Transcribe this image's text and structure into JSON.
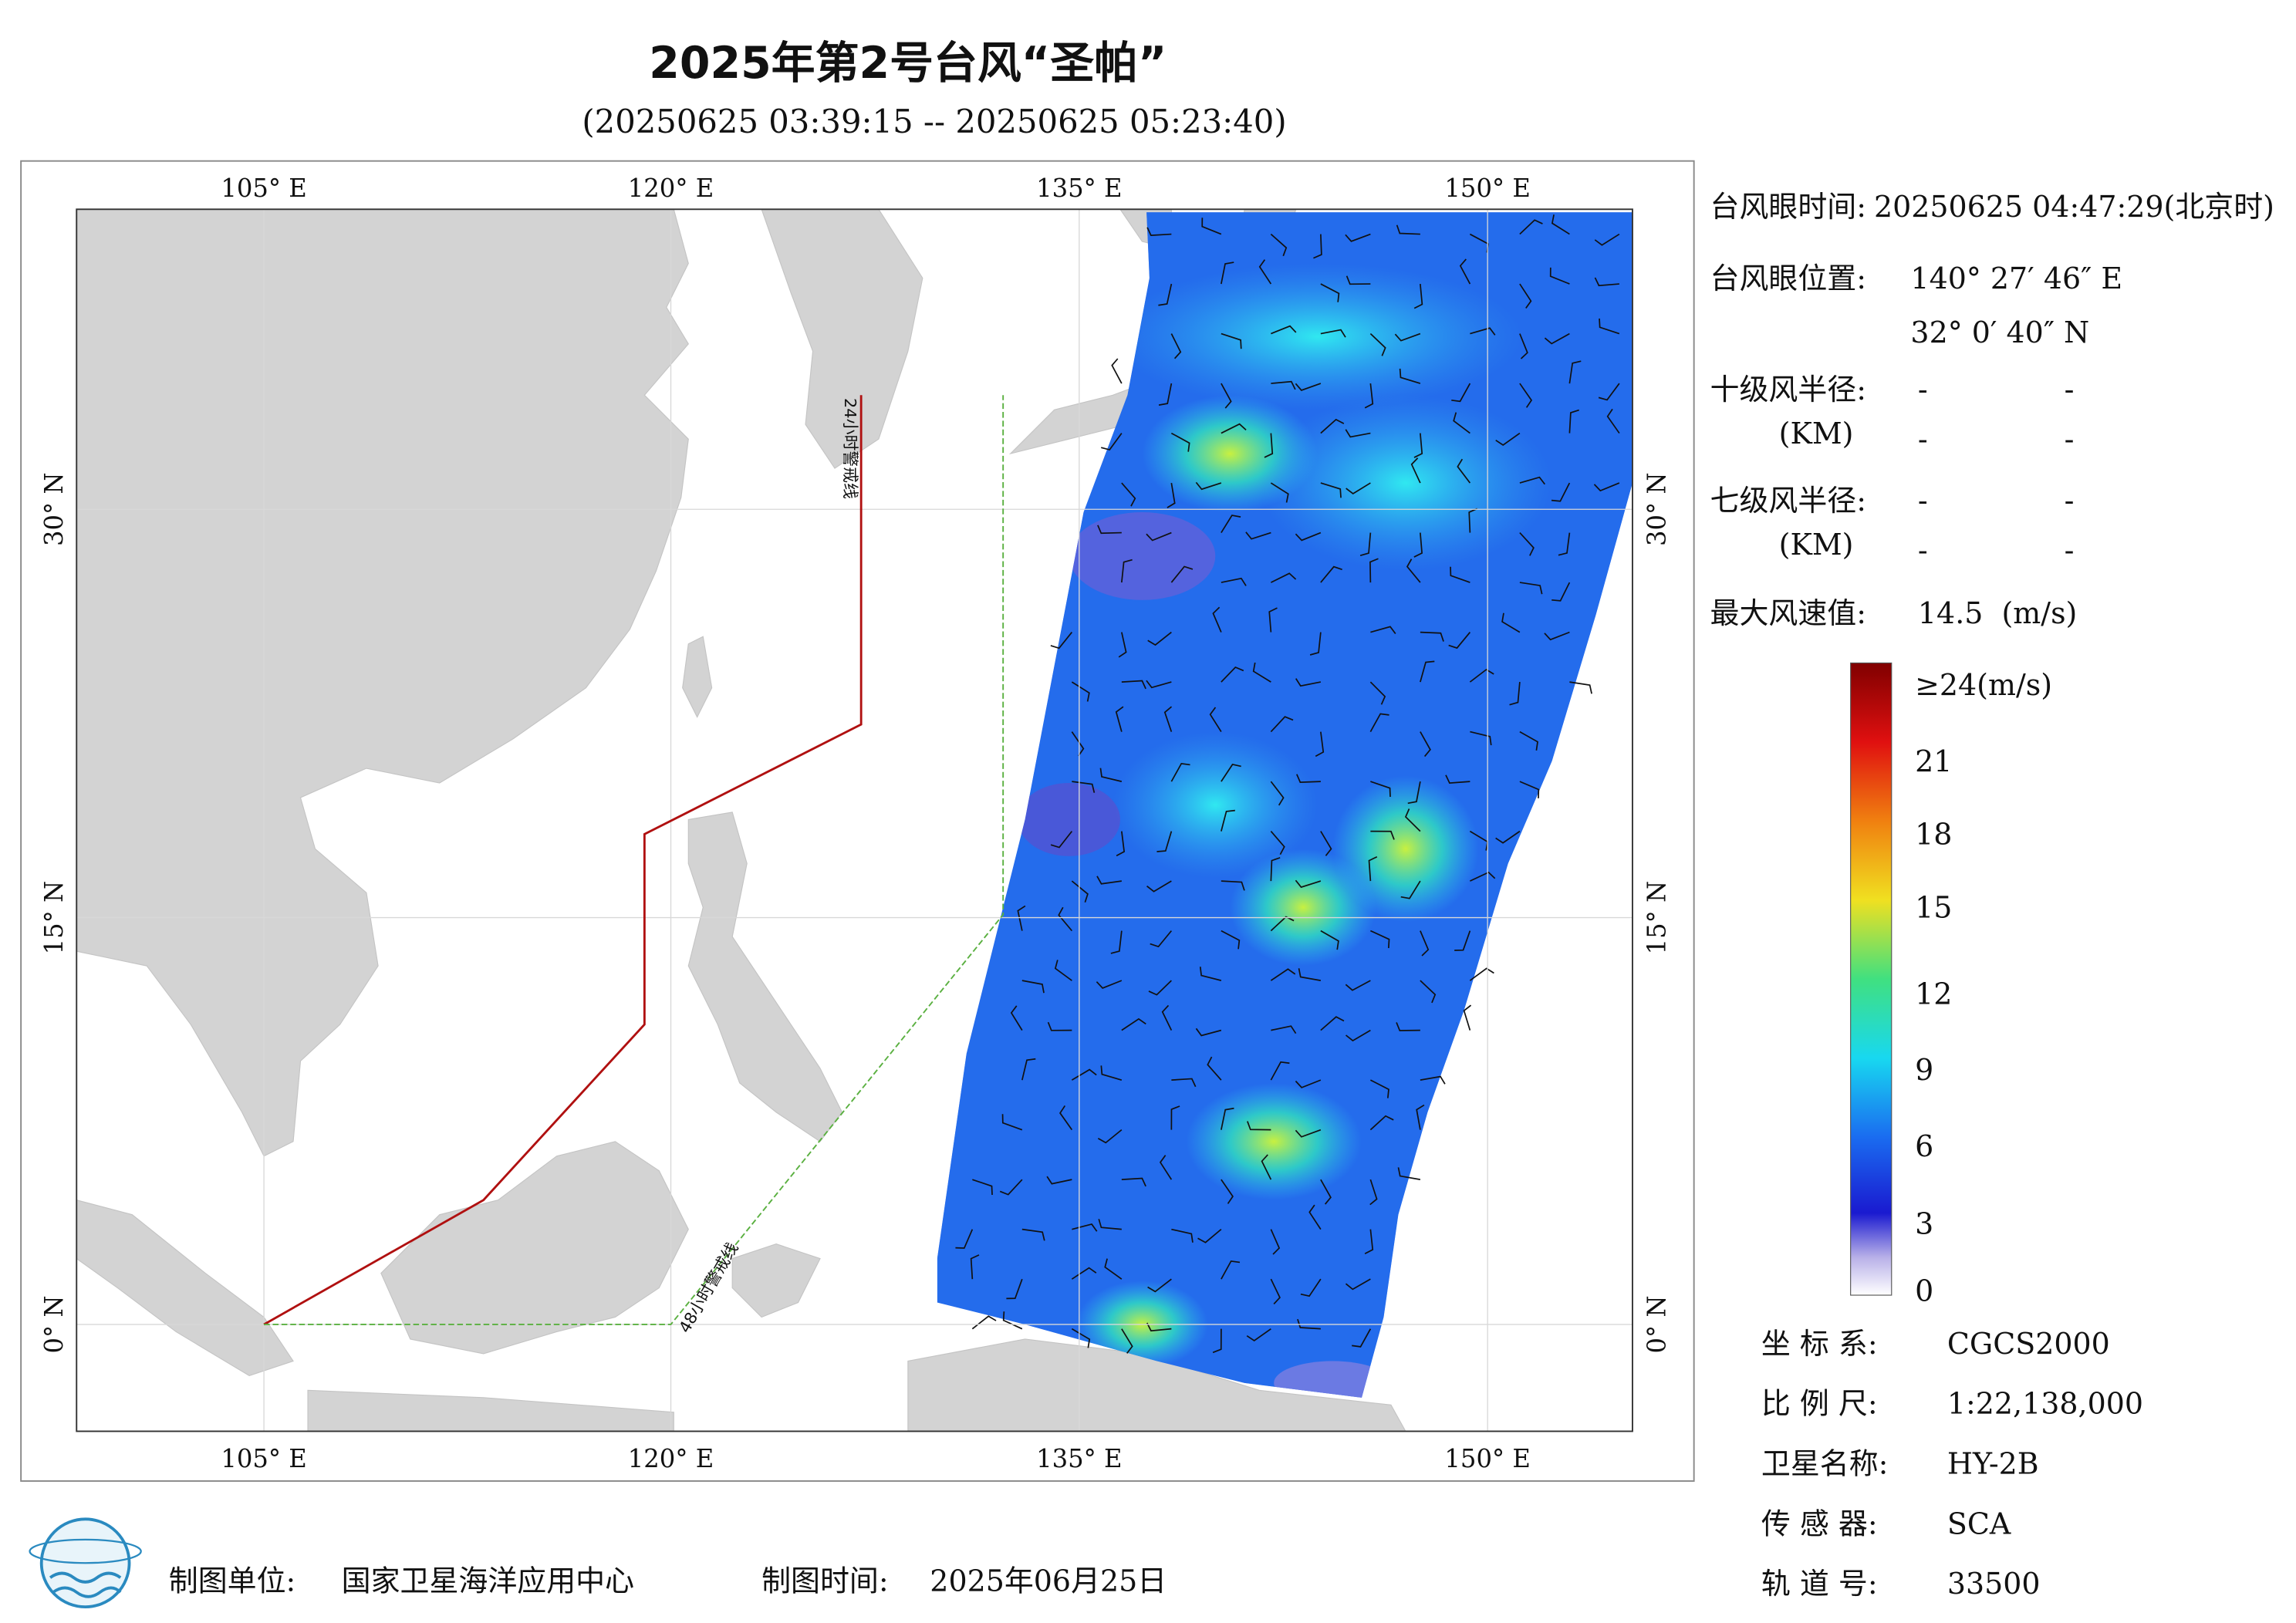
{
  "header": {
    "title": "2025年第2号台风“圣帕”",
    "subtitle": "(20250625 03:39:15 -- 20250625 05:23:40)"
  },
  "map": {
    "lon_labels": [
      "105° E",
      "120° E",
      "135° E",
      "150° E"
    ],
    "lat_labels": [
      "30° N",
      "15° N",
      "0° N"
    ],
    "warning_lines": [
      "24小时警戒线",
      "48小时警戒线"
    ]
  },
  "info": {
    "eye_time": {
      "label": "台风眼时间:",
      "value": "20250625 04:47:29(北京时)"
    },
    "eye_position": {
      "label": "台风眼位置:",
      "lon": "140° 27′ 46″ E",
      "lat": "32° 0′ 40″ N"
    },
    "radius_10": {
      "label": "十级风半径:",
      "unit": "(KM)",
      "values": [
        "-",
        "-",
        "-",
        "-"
      ]
    },
    "radius_7": {
      "label": "七级风半径:",
      "unit": "(KM)",
      "values": [
        "-",
        "-",
        "-",
        "-"
      ]
    },
    "max_wind": {
      "label": "最大风速值:",
      "value": "14.5  (m/s)"
    }
  },
  "colorbar": {
    "labels": [
      "≥24(m/s)",
      "21",
      "18",
      "15",
      "12",
      "9",
      "6",
      "3",
      "0"
    ]
  },
  "meta": {
    "rows": [
      {
        "label": "坐 标 系:",
        "value": "CGCS2000"
      },
      {
        "label": "比 例 尺:",
        "value": "1:22,138,000"
      },
      {
        "label": "卫星名称:",
        "value": "HY-2B"
      },
      {
        "label": "传 感 器:",
        "value": "SCA"
      },
      {
        "label": "轨 道 号:",
        "value": "33500"
      }
    ]
  },
  "footer": {
    "unit_label": "制图单位:",
    "unit": "国家卫星海洋应用中心",
    "time_label": "制图时间:",
    "time": "2025年06月25日"
  }
}
